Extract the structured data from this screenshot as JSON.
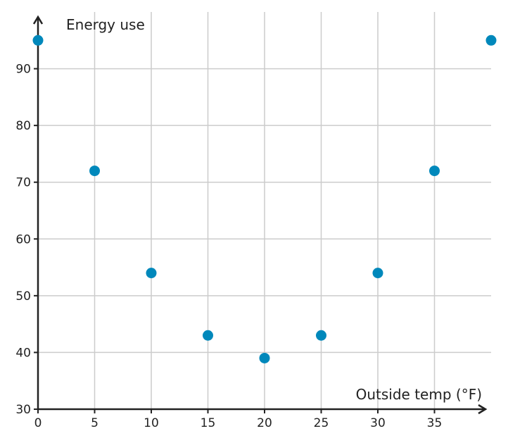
{
  "chart_data": {
    "type": "scatter",
    "xlabel": "Outside temp (°F)",
    "ylabel": "Energy use",
    "xlim": [
      0,
      40
    ],
    "ylim": [
      30,
      100
    ],
    "xticks": [
      0,
      5,
      10,
      15,
      20,
      25,
      30,
      35
    ],
    "yticks": [
      30,
      40,
      50,
      60,
      70,
      80,
      90
    ],
    "grid": true,
    "point_color": "#0088bb",
    "series": [
      {
        "x": [
          0,
          5,
          10,
          15,
          20,
          25,
          30,
          35,
          40
        ],
        "y": [
          95,
          72,
          54,
          43,
          39,
          43,
          54,
          72,
          95
        ]
      }
    ]
  }
}
